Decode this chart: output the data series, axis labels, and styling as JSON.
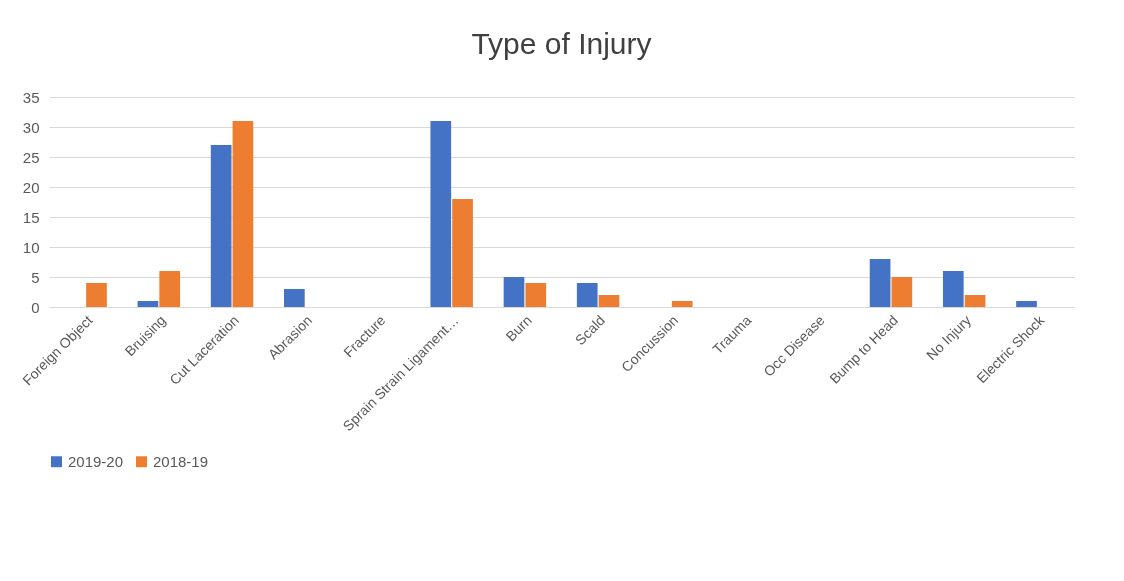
{
  "chart_data": {
    "type": "bar",
    "title": "Type of Injury",
    "categories": [
      "Foreign Object",
      "Bruising",
      "Cut Laceration",
      "Abrasion",
      "Fracture",
      "Sprain Strain Ligament…",
      "Burn",
      "Scald",
      "Concussion",
      "Trauma",
      "Occ Disease",
      "Bump to Head",
      "No Injury",
      "Electric Shock"
    ],
    "series": [
      {
        "name": "2019-20",
        "color": "#4472c4",
        "values": [
          0,
          1,
          27,
          3,
          0,
          31,
          5,
          4,
          0,
          0,
          0,
          8,
          6,
          1
        ]
      },
      {
        "name": "2018-19",
        "color": "#ed7d31",
        "values": [
          4,
          6,
          31,
          0,
          0,
          18,
          4,
          2,
          1,
          0,
          0,
          5,
          2,
          0
        ]
      }
    ],
    "ylim": [
      0,
      35
    ],
    "yticks": [
      0,
      5,
      10,
      15,
      20,
      25,
      30,
      35
    ],
    "grid": "y",
    "legend": "bottom"
  }
}
